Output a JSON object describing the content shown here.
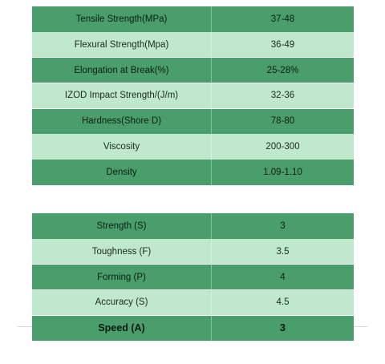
{
  "table1": {
    "rows": [
      {
        "label": "Tensile Strength(MPa)",
        "value": "37-48"
      },
      {
        "label": "Flexural Strength(Mpa)",
        "value": "36-49"
      },
      {
        "label": "Elongation at Break(%)",
        "value": "25-28%"
      },
      {
        "label": "IZOD Impact Strength/(J/m)",
        "value": "32-36"
      },
      {
        "label": "Hardness(Shore D)",
        "value": "78-80"
      },
      {
        "label": "Viscosity",
        "value": "200-300"
      },
      {
        "label": "Density",
        "value": "1.09-1.10"
      }
    ]
  },
  "table2": {
    "rows": [
      {
        "label": "Strength (S)",
        "value": "3"
      },
      {
        "label": "Toughness (F)",
        "value": "3.5"
      },
      {
        "label": "Forming (P)",
        "value": "4"
      },
      {
        "label": "Accuracy (S)",
        "value": "4.5"
      },
      {
        "label": "Speed (A)",
        "value": "3"
      }
    ]
  },
  "colors": {
    "dark_row": "#4a9e6c",
    "light_row": "#bfe8cc"
  }
}
